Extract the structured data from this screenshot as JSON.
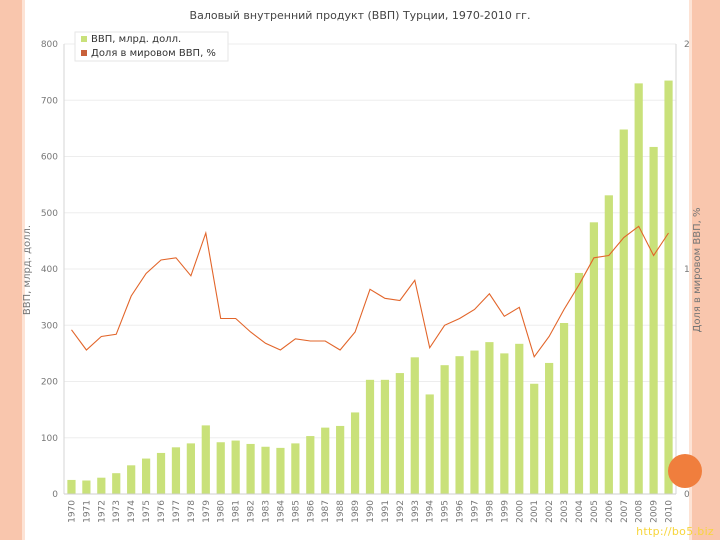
{
  "watermark": "http://bo5.biz",
  "chart_data": {
    "type": "bar",
    "title": "Валовый внутренний продукт (ВВП) Турции, 1970-2010 гг.",
    "ylabel": "ВВП, млрд. долл.",
    "y2label": "Доля в мировом ВВП, %",
    "ylim": [
      0,
      800
    ],
    "y2lim": [
      0,
      2
    ],
    "yticks": [
      0,
      100,
      200,
      300,
      400,
      500,
      600,
      700,
      800
    ],
    "yticklabels": [
      "0",
      "100",
      "200",
      "300",
      "400",
      "500",
      "600",
      "700",
      "800"
    ],
    "y2ticks": [
      0,
      1,
      2
    ],
    "y2ticklabels": [
      "0",
      "1",
      "2"
    ],
    "grid": true,
    "legend_position": "top-left",
    "categories": [
      "1970",
      "1971",
      "1972",
      "1973",
      "1974",
      "1975",
      "1976",
      "1977",
      "1978",
      "1979",
      "1980",
      "1981",
      "1982",
      "1983",
      "1984",
      "1985",
      "1986",
      "1987",
      "1988",
      "1989",
      "1990",
      "1991",
      "1992",
      "1993",
      "1994",
      "1995",
      "1996",
      "1997",
      "1998",
      "1999",
      "2000",
      "2001",
      "2002",
      "2003",
      "2004",
      "2005",
      "2006",
      "2007",
      "2008",
      "2009",
      "2010"
    ],
    "series": [
      {
        "name": "ВВП, млрд. долл.",
        "kind": "bar",
        "axis": "left",
        "color": "#c9e17a",
        "values": [
          25,
          24,
          29,
          37,
          51,
          63,
          73,
          83,
          90,
          122,
          92,
          95,
          89,
          84,
          82,
          90,
          103,
          118,
          121,
          145,
          203,
          203,
          215,
          243,
          177,
          229,
          245,
          255,
          270,
          250,
          267,
          196,
          233,
          304,
          393,
          483,
          531,
          648,
          730,
          617,
          735
        ]
      },
      {
        "name": "Доля в мировом ВВП, %",
        "kind": "line",
        "axis": "right",
        "color": "#e2652a",
        "values": [
          0.73,
          0.64,
          0.7,
          0.71,
          0.88,
          0.98,
          1.04,
          1.05,
          0.97,
          1.16,
          0.78,
          0.78,
          0.72,
          0.67,
          0.64,
          0.69,
          0.68,
          0.68,
          0.64,
          0.72,
          0.91,
          0.87,
          0.86,
          0.95,
          0.65,
          0.75,
          0.78,
          0.82,
          0.89,
          0.79,
          0.83,
          0.61,
          0.7,
          0.82,
          0.93,
          1.05,
          1.06,
          1.14,
          1.19,
          1.06,
          1.16
        ]
      }
    ]
  }
}
